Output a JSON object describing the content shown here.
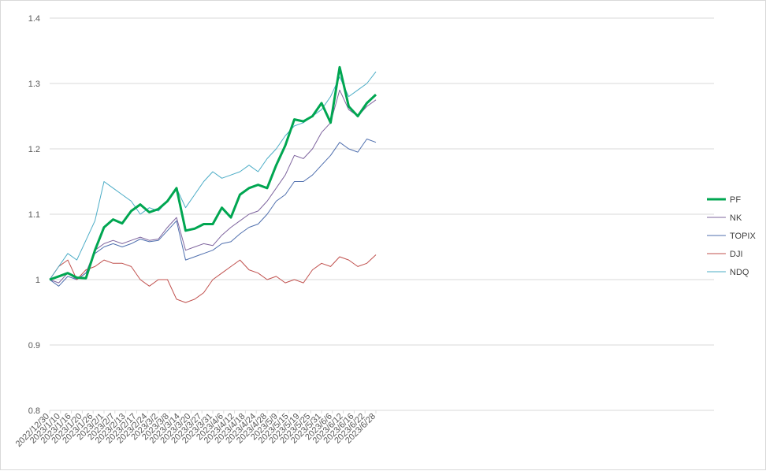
{
  "chart_data": {
    "type": "line",
    "title": "",
    "xlabel": "",
    "ylabel": "",
    "ylim": [
      0.8,
      1.4
    ],
    "y_ticks": [
      "0.8",
      "0.9",
      "1",
      "1.1",
      "1.2",
      "1.3",
      "1.4"
    ],
    "x_tick_labels": [
      "2022/12/30",
      "2023/1/10",
      "2023/1/16",
      "2023/1/20",
      "2023/1/26",
      "2023/2/1",
      "2023/2/7",
      "2023/2/13",
      "2023/2/17",
      "2023/2/24",
      "2023/3/2",
      "2023/3/8",
      "2023/3/14",
      "2023/3/20",
      "2023/3/27",
      "2023/3/31",
      "2023/4/6",
      "2023/4/12",
      "2023/4/18",
      "2023/4/24",
      "2023/4/28",
      "2023/5/9",
      "2023/5/15",
      "2023/5/19",
      "2023/5/25",
      "2023/5/31",
      "2023/6/6",
      "2023/6/12",
      "2023/6/16",
      "2023/6/22",
      "2023/6/28"
    ],
    "gridlines": true,
    "legend_position": "right",
    "series": [
      {
        "name": "PF",
        "color": "#00a651",
        "width": 3,
        "values": [
          1.0,
          1.005,
          1.01,
          1.003,
          1.002,
          1.045,
          1.08,
          1.092,
          1.086,
          1.105,
          1.115,
          1.103,
          1.108,
          1.12,
          1.14,
          1.075,
          1.078,
          1.085,
          1.085,
          1.11,
          1.095,
          1.13,
          1.14,
          1.145,
          1.14,
          1.175,
          1.205,
          1.245,
          1.242,
          1.25,
          1.27,
          1.24,
          1.325,
          1.265,
          1.25,
          1.27,
          1.283
        ]
      },
      {
        "name": "NK",
        "color": "#7e649e",
        "width": 1,
        "values": [
          1.0,
          0.995,
          1.01,
          1.0,
          1.01,
          1.045,
          1.055,
          1.06,
          1.055,
          1.06,
          1.065,
          1.06,
          1.062,
          1.08,
          1.095,
          1.045,
          1.05,
          1.055,
          1.052,
          1.068,
          1.08,
          1.09,
          1.1,
          1.105,
          1.12,
          1.14,
          1.16,
          1.19,
          1.185,
          1.2,
          1.225,
          1.24,
          1.29,
          1.26,
          1.25,
          1.265,
          1.275
        ]
      },
      {
        "name": "TOPIX",
        "color": "#4f6fae",
        "width": 1,
        "values": [
          1.0,
          0.99,
          1.005,
          1.0,
          1.01,
          1.04,
          1.05,
          1.055,
          1.05,
          1.055,
          1.062,
          1.058,
          1.06,
          1.075,
          1.09,
          1.03,
          1.035,
          1.04,
          1.045,
          1.055,
          1.058,
          1.07,
          1.08,
          1.085,
          1.1,
          1.12,
          1.13,
          1.15,
          1.15,
          1.16,
          1.175,
          1.19,
          1.21,
          1.2,
          1.195,
          1.215,
          1.21
        ]
      },
      {
        "name": "DJI",
        "color": "#c0504d",
        "width": 1,
        "values": [
          1.0,
          1.02,
          1.03,
          1.0,
          1.015,
          1.02,
          1.03,
          1.025,
          1.025,
          1.02,
          1.0,
          0.99,
          1.0,
          1.0,
          0.97,
          0.965,
          0.97,
          0.98,
          1.0,
          1.01,
          1.02,
          1.03,
          1.015,
          1.01,
          1.0,
          1.005,
          0.995,
          1.0,
          0.995,
          1.015,
          1.025,
          1.02,
          1.035,
          1.03,
          1.02,
          1.025,
          1.038
        ]
      },
      {
        "name": "NDQ",
        "color": "#4bacc6",
        "width": 1,
        "values": [
          1.0,
          1.02,
          1.04,
          1.03,
          1.06,
          1.09,
          1.15,
          1.14,
          1.13,
          1.12,
          1.1,
          1.11,
          1.105,
          1.12,
          1.14,
          1.11,
          1.13,
          1.15,
          1.165,
          1.155,
          1.16,
          1.165,
          1.175,
          1.165,
          1.185,
          1.2,
          1.22,
          1.235,
          1.24,
          1.25,
          1.26,
          1.28,
          1.31,
          1.28,
          1.29,
          1.3,
          1.318
        ]
      }
    ]
  }
}
